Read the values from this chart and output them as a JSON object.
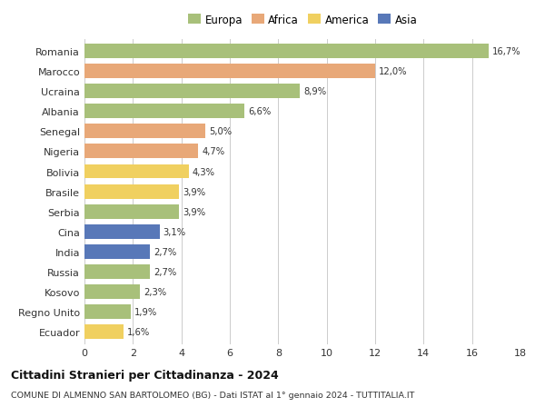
{
  "countries": [
    "Romania",
    "Marocco",
    "Ucraina",
    "Albania",
    "Senegal",
    "Nigeria",
    "Bolivia",
    "Brasile",
    "Serbia",
    "Cina",
    "India",
    "Russia",
    "Kosovo",
    "Regno Unito",
    "Ecuador"
  ],
  "values": [
    16.7,
    12.0,
    8.9,
    6.6,
    5.0,
    4.7,
    4.3,
    3.9,
    3.9,
    3.1,
    2.7,
    2.7,
    2.3,
    1.9,
    1.6
  ],
  "labels": [
    "16,7%",
    "12,0%",
    "8,9%",
    "6,6%",
    "5,0%",
    "4,7%",
    "4,3%",
    "3,9%",
    "3,9%",
    "3,1%",
    "2,7%",
    "2,7%",
    "2,3%",
    "1,9%",
    "1,6%"
  ],
  "continents": [
    "Europa",
    "Africa",
    "Europa",
    "Europa",
    "Africa",
    "Africa",
    "America",
    "America",
    "Europa",
    "Asia",
    "Asia",
    "Europa",
    "Europa",
    "Europa",
    "America"
  ],
  "colors": {
    "Europa": "#a8c07a",
    "Africa": "#e8a878",
    "America": "#f0d060",
    "Asia": "#5878b8"
  },
  "xlim": [
    0,
    18
  ],
  "xticks": [
    0,
    2,
    4,
    6,
    8,
    10,
    12,
    14,
    16,
    18
  ],
  "title": "Cittadini Stranieri per Cittadinanza - 2024",
  "subtitle": "COMUNE DI ALMENNO SAN BARTOLOMEO (BG) - Dati ISTAT al 1° gennaio 2024 - TUTTITALIA.IT",
  "background_color": "#ffffff",
  "grid_color": "#cccccc",
  "bar_height": 0.72,
  "legend_entries": [
    "Europa",
    "Africa",
    "America",
    "Asia"
  ]
}
